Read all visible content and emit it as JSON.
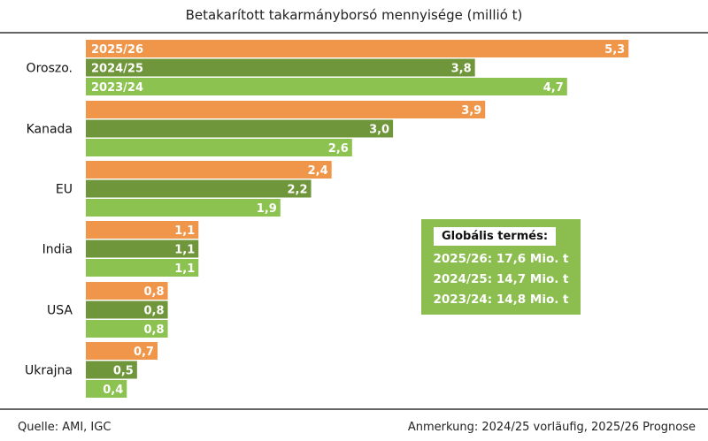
{
  "chart_data": {
    "type": "bar",
    "orientation": "horizontal",
    "title": "Betakarított takarmányborsó mennyisége (millió t)",
    "categories": [
      "Oroszo.",
      "Kanada",
      "EU",
      "India",
      "USA",
      "Ukrajna"
    ],
    "series": [
      {
        "name": "2025/26",
        "color": "#f0964b",
        "values": [
          5.3,
          3.9,
          2.4,
          1.1,
          0.8,
          0.7
        ],
        "labels": [
          "5,3",
          "3,9",
          "2,4",
          "1,1",
          "0,8",
          "0,7"
        ]
      },
      {
        "name": "2024/25",
        "color": "#6f963a",
        "values": [
          3.8,
          3.0,
          2.2,
          1.1,
          0.8,
          0.5
        ],
        "labels": [
          "3,8",
          "3,0",
          "2,2",
          "1,1",
          "0,8",
          "0,5"
        ]
      },
      {
        "name": "2023/24",
        "color": "#8cc24f",
        "values": [
          4.7,
          2.6,
          1.9,
          1.1,
          0.8,
          0.4
        ],
        "labels": [
          "4,7",
          "2,6",
          "1,9",
          "1,1",
          "0,8",
          "0,4"
        ]
      }
    ],
    "legend": "inside-bars-top",
    "grid": false
  },
  "box": {
    "heading": "Globális termés:",
    "lines": [
      "2025/26: 17,6 Mio. t",
      "2024/25: 14,7 Mio. t",
      "2023/24: 14,8 Mio. t"
    ]
  },
  "footer": {
    "source": "Quelle:  AMI, IGC",
    "note": "Anmerkung: 2024/25 vorläufig, 2025/26 Prognose"
  }
}
